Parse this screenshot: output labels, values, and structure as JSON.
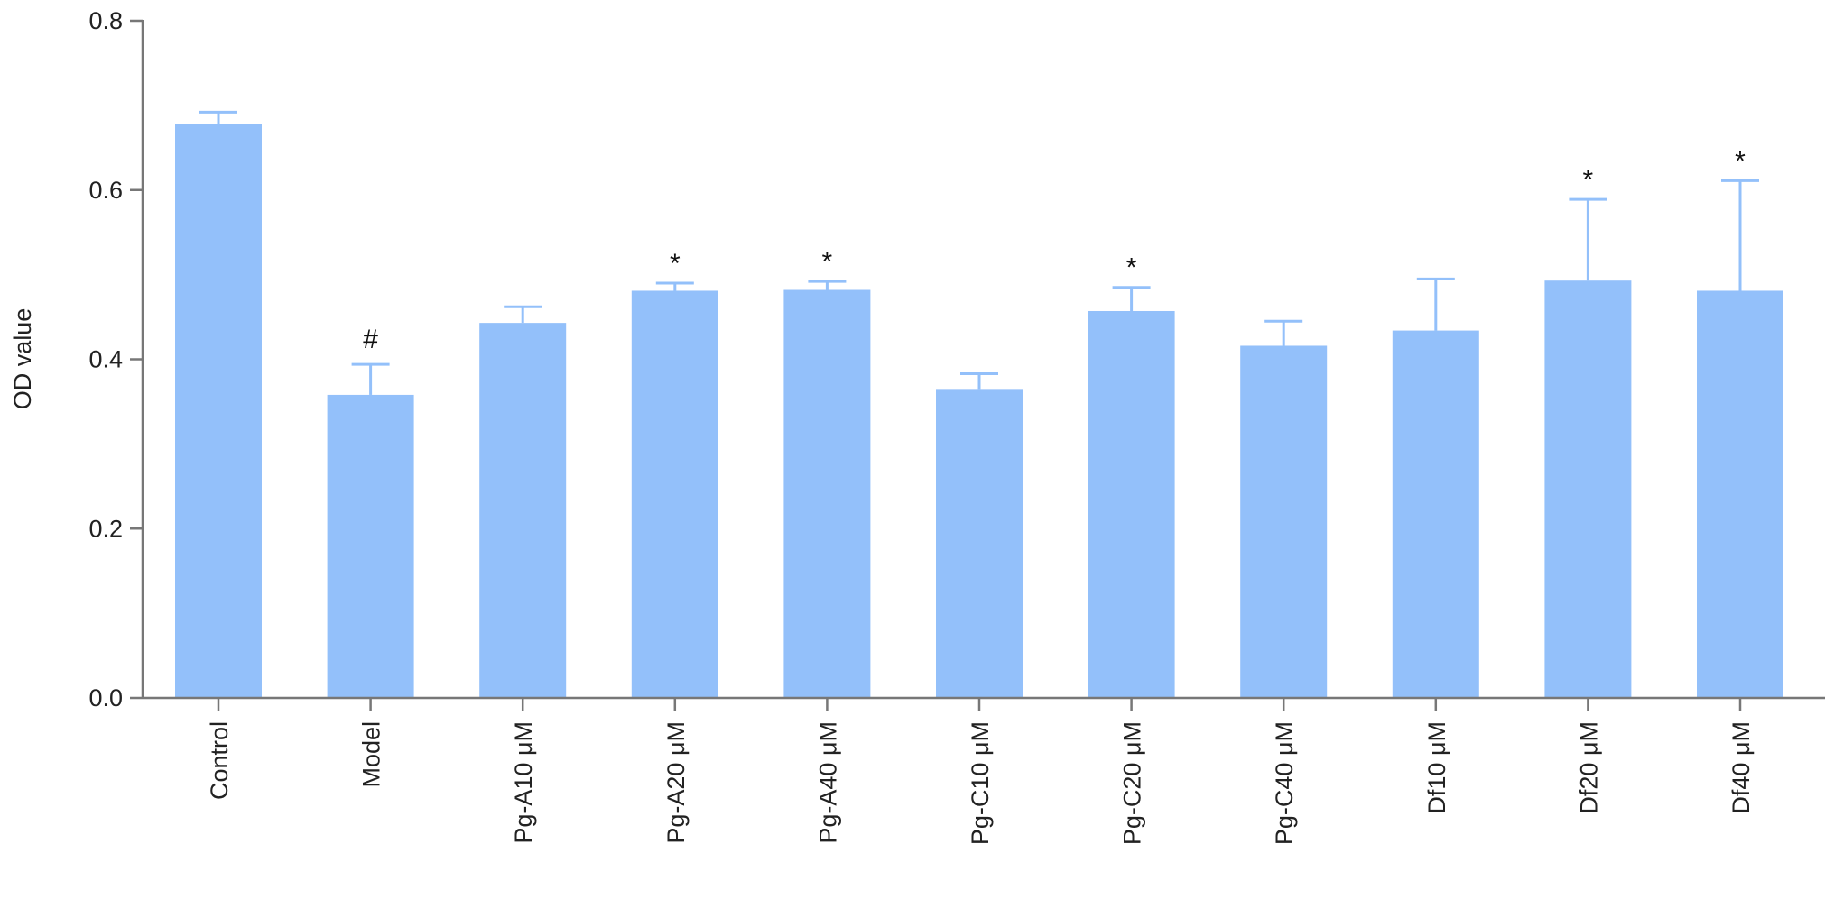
{
  "chart_data": {
    "type": "bar",
    "title": "",
    "xlabel": "",
    "ylabel": "OD value",
    "ylim": [
      0,
      0.8
    ],
    "yticks": [
      "0.0",
      "0.2",
      "0.4",
      "0.6",
      "0.8"
    ],
    "grid": false,
    "bar_color": "#93c0fa",
    "categories": [
      "Control",
      "Model",
      "Pg-A10 μM",
      "Pg-A20 μM",
      "Pg-A40 μM",
      "Pg-C10 μM",
      "Pg-C20 μM",
      "Pg-C40 μM",
      "Df10 μM",
      "Df20 μM",
      "Df40 μM"
    ],
    "values": [
      0.678,
      0.358,
      0.443,
      0.481,
      0.482,
      0.365,
      0.457,
      0.416,
      0.434,
      0.493,
      0.481
    ],
    "error_upper": [
      0.692,
      0.394,
      0.462,
      0.49,
      0.492,
      0.383,
      0.485,
      0.445,
      0.495,
      0.589,
      0.611
    ],
    "annotations": [
      "",
      "#",
      "",
      "*",
      "*",
      "",
      "*",
      "",
      "",
      "*",
      "*"
    ]
  }
}
